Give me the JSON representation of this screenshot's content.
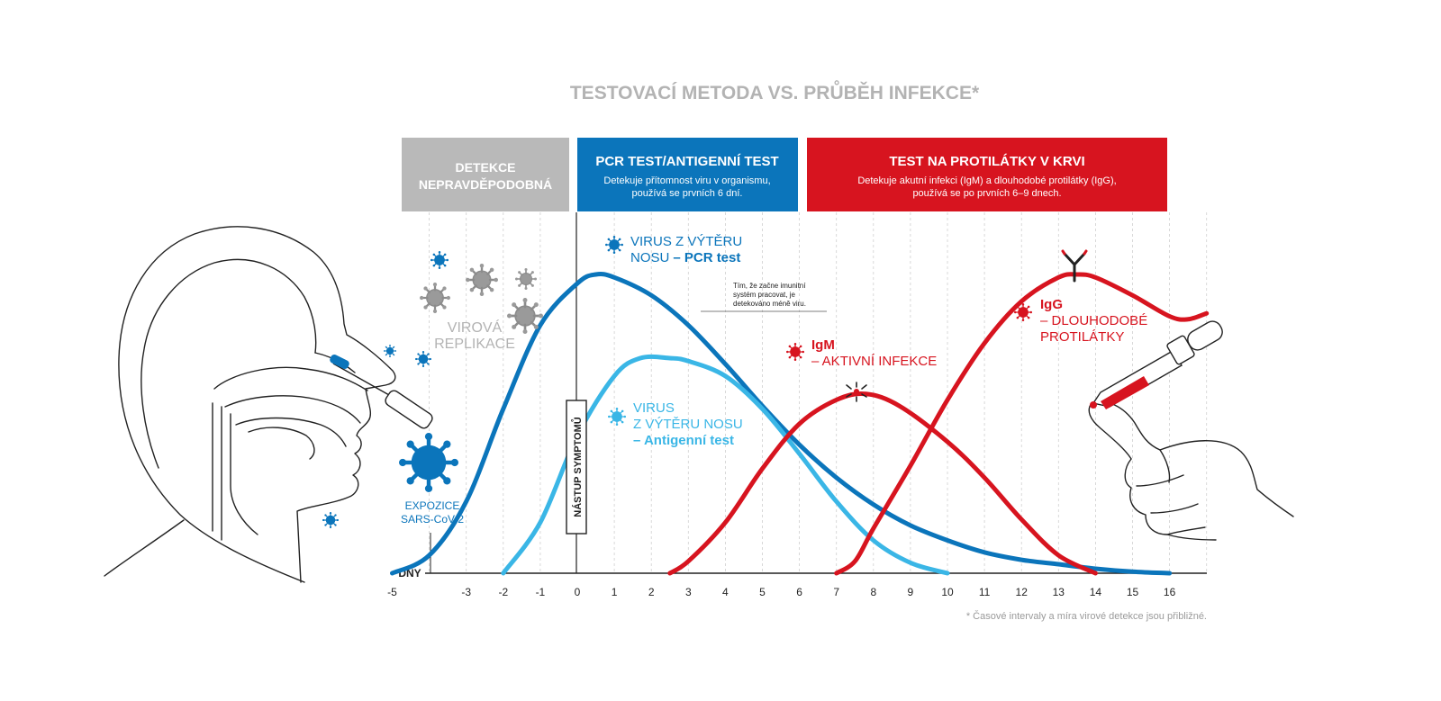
{
  "title": "TESTOVACÍ METODA VS. PRŮBĚH INFEKCE*",
  "footnote": "* Časové intervaly a míra virové detekce jsou přibližné.",
  "colors": {
    "title": "#b3b3b3",
    "gray_box": "#b9b9b9",
    "blue": "#0b75bb",
    "light_blue": "#3ab6e6",
    "red": "#d7141f",
    "line_art": "#222222",
    "virus_gray": "#8c8c8c"
  },
  "header_boxes": {
    "unlikely": {
      "line1": "DETEKCE",
      "line2": "NEPRAVDĚPODOBNÁ"
    },
    "pcr": {
      "title": "PCR TEST/ANTIGENNÍ TEST",
      "desc1": "Detekuje přítomnost viru v organismu,",
      "desc2": "používá se prvních 6 dní."
    },
    "antibody": {
      "title": "TEST NA PROTILÁTKY V KRVI",
      "desc1": "Detekuje akutní infekci (IgM) a dlouhodobé protilátky (IgG),",
      "desc2": "používá se po prvních 6–9 dnech."
    }
  },
  "labels": {
    "viral_replication_1": "VIROVÁ",
    "viral_replication_2": "REPLIKACE",
    "exposure_1": "EXPOZICE",
    "exposure_2": "SARS-CoV-2",
    "symptom_onset": "NÁSTUP SYMPTOMŮ",
    "pcr_1": "VIRUS Z VÝTĚRU",
    "pcr_2a": "NOSU",
    "pcr_2b": "– PCR test",
    "antigen_1": "VIRUS",
    "antigen_2": "Z VÝTĚRU NOSU",
    "antigen_3": "– Antigenní test",
    "igm_1": "IgM",
    "igm_2": "– AKTIVNÍ INFEKCE",
    "igg_1": "IgG",
    "igg_2": "– DLOUHODOBÉ",
    "igg_3": "PROTILÁTKY",
    "immune_note_1": "Tím, že začne imunitní",
    "immune_note_2": "systém pracovat, je",
    "immune_note_3": "detekováno méně viru."
  },
  "chart_data": {
    "type": "line",
    "xlabel": "DNY",
    "x_ticks": [
      "-5",
      "-3",
      "-2",
      "-1",
      "0",
      "1",
      "2",
      "3",
      "4",
      "5",
      "6",
      "7",
      "8",
      "9",
      "10",
      "11",
      "12",
      "13",
      "14",
      "15",
      "16"
    ],
    "y_range": [
      0,
      1
    ],
    "grid": "vertical dashed",
    "series": [
      {
        "name": "VIRUS Z VÝTĚRU NOSU – PCR test",
        "color": "#0b75bb",
        "points": [
          [
            -5,
            0.0
          ],
          [
            -4,
            0.06
          ],
          [
            -3,
            0.24
          ],
          [
            -2,
            0.55
          ],
          [
            -1,
            0.83
          ],
          [
            0,
            0.97
          ],
          [
            0.5,
            1.0
          ],
          [
            1,
            0.99
          ],
          [
            2,
            0.93
          ],
          [
            3,
            0.83
          ],
          [
            4,
            0.7
          ],
          [
            5,
            0.56
          ],
          [
            6,
            0.43
          ],
          [
            7,
            0.32
          ],
          [
            8,
            0.23
          ],
          [
            9,
            0.16
          ],
          [
            10,
            0.11
          ],
          [
            11,
            0.07
          ],
          [
            12,
            0.045
          ],
          [
            13,
            0.03
          ],
          [
            14,
            0.015
          ],
          [
            15,
            0.005
          ],
          [
            16,
            0.0
          ]
        ]
      },
      {
        "name": "VIRUS Z VÝTĚRU NOSU – Antigenní test",
        "color": "#3ab6e6",
        "points": [
          [
            -2,
            0.0
          ],
          [
            -1,
            0.17
          ],
          [
            0,
            0.46
          ],
          [
            1,
            0.66
          ],
          [
            1.7,
            0.72
          ],
          [
            2.5,
            0.72
          ],
          [
            3,
            0.71
          ],
          [
            4,
            0.66
          ],
          [
            5,
            0.55
          ],
          [
            6,
            0.4
          ],
          [
            7,
            0.24
          ],
          [
            8,
            0.11
          ],
          [
            9,
            0.035
          ],
          [
            10,
            0.0
          ]
        ]
      },
      {
        "name": "IgM – AKTIVNÍ INFEKCE",
        "color": "#d7141f",
        "points": [
          [
            2.5,
            0.0
          ],
          [
            3,
            0.04
          ],
          [
            4,
            0.17
          ],
          [
            5,
            0.35
          ],
          [
            6,
            0.5
          ],
          [
            7,
            0.58
          ],
          [
            7.8,
            0.6
          ],
          [
            8.7,
            0.56
          ],
          [
            10,
            0.44
          ],
          [
            11,
            0.32
          ],
          [
            12,
            0.18
          ],
          [
            13,
            0.06
          ],
          [
            14,
            0.0
          ]
        ]
      },
      {
        "name": "IgG – DLOUHODOBÉ PROTILÁTKY",
        "color": "#d7141f",
        "points": [
          [
            7,
            0.0
          ],
          [
            7.5,
            0.04
          ],
          [
            8,
            0.15
          ],
          [
            9,
            0.36
          ],
          [
            10,
            0.58
          ],
          [
            11,
            0.77
          ],
          [
            12,
            0.91
          ],
          [
            13,
            0.99
          ],
          [
            13.5,
            1.0
          ],
          [
            14,
            0.99
          ],
          [
            15,
            0.93
          ],
          [
            16,
            0.86
          ],
          [
            16.5,
            0.85
          ],
          [
            17,
            0.87
          ]
        ]
      }
    ]
  }
}
